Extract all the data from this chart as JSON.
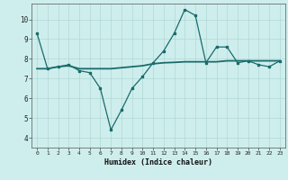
{
  "title": "",
  "xlabel": "Humidex (Indice chaleur)",
  "ylabel": "",
  "bg_color": "#ceeeed",
  "grid_color": "#b0d8d6",
  "line_color": "#1a6b6b",
  "marker_color": "#1a6b6b",
  "ylim": [
    3.5,
    10.8
  ],
  "xlim": [
    -0.5,
    23.5
  ],
  "yticks": [
    4,
    5,
    6,
    7,
    8,
    9,
    10
  ],
  "xticks": [
    0,
    1,
    2,
    3,
    4,
    5,
    6,
    7,
    8,
    9,
    10,
    11,
    12,
    13,
    14,
    15,
    16,
    17,
    18,
    19,
    20,
    21,
    22,
    23
  ],
  "xtick_labels": [
    "0",
    "1",
    "2",
    "3",
    "4",
    "5",
    "6",
    "7",
    "8",
    "9",
    "10",
    "11",
    "12",
    "13",
    "14",
    "15",
    "16",
    "17",
    "18",
    "19",
    "20",
    "21",
    "22",
    "23"
  ],
  "line1_x": [
    0,
    1,
    2,
    3,
    4,
    5,
    6,
    7,
    8,
    9,
    10,
    11,
    12,
    13,
    14,
    15,
    16,
    17,
    18,
    19,
    20,
    21,
    22,
    23
  ],
  "line1_y": [
    9.3,
    7.5,
    7.6,
    7.7,
    7.4,
    7.3,
    6.5,
    4.4,
    5.4,
    6.5,
    7.1,
    7.8,
    8.4,
    9.3,
    10.5,
    10.2,
    7.8,
    8.6,
    8.6,
    7.8,
    7.9,
    7.7,
    7.6,
    7.9
  ],
  "line2_x": [
    0,
    1,
    2,
    3,
    4,
    5,
    6,
    7,
    8,
    9,
    10,
    11,
    12,
    13,
    14,
    15,
    16,
    17,
    18,
    19,
    20,
    21,
    22,
    23
  ],
  "line2_y": [
    7.5,
    7.5,
    7.6,
    7.65,
    7.5,
    7.5,
    7.5,
    7.5,
    7.55,
    7.6,
    7.65,
    7.75,
    7.8,
    7.82,
    7.85,
    7.85,
    7.85,
    7.85,
    7.9,
    7.9,
    7.9,
    7.9,
    7.9,
    7.9
  ]
}
